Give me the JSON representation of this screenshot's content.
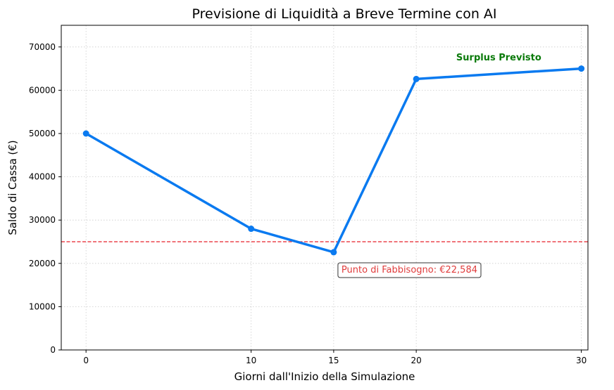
{
  "chart_data": {
    "type": "line",
    "title": "Previsione di Liquidità a Breve Termine con AI",
    "xlabel": "Giorni dall'Inizio della Simulazione",
    "ylabel": "Saldo di Cassa (€)",
    "x": [
      0,
      10,
      15,
      20,
      30
    ],
    "series": [
      {
        "values": [
          50000,
          28000,
          22584,
          62600,
          65000
        ]
      }
    ],
    "xlim": [
      -1.5,
      30.4
    ],
    "ylim": [
      0,
      75000
    ],
    "xticks": [
      0,
      10,
      15,
      20,
      30
    ],
    "yticks": [
      0,
      10000,
      20000,
      30000,
      40000,
      50000,
      60000,
      70000
    ],
    "grid": true,
    "threshold": 25000,
    "annotations": [
      {
        "text": "Surplus Previsto",
        "x": 25,
        "y": 67500
      },
      {
        "text": "Punto di Fabbisogno: €22,584",
        "x": 15.3,
        "y": 18500
      }
    ],
    "colors": {
      "line": "#0a7af0",
      "threshold": "#e8202a",
      "surplus": "#0a7a0a",
      "fabbisogno": "#e03c3c",
      "grid": "#cccccc"
    }
  }
}
